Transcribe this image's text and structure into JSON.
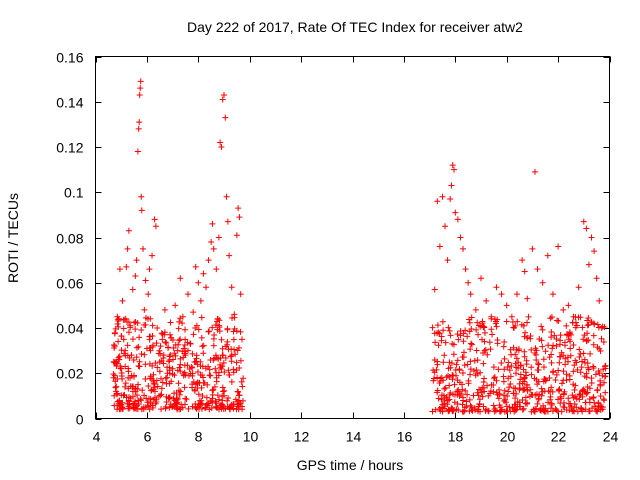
{
  "chart_data": {
    "type": "scatter",
    "title": "Day 222 of 2017, Rate Of TEC Index for receiver atw2",
    "xlabel": "GPS time / hours",
    "ylabel": "ROTI / TECUs",
    "xlim": [
      4,
      24
    ],
    "ylim": [
      0,
      0.16
    ],
    "xticks": [
      4,
      6,
      8,
      10,
      12,
      14,
      16,
      18,
      20,
      22,
      24
    ],
    "yticks": [
      0,
      0.02,
      0.04,
      0.06,
      0.08,
      0.1,
      0.12,
      0.14,
      0.16
    ],
    "xtick_labels": [
      "4",
      "6",
      "8",
      "10",
      "12",
      "14",
      "16",
      "18",
      "20",
      "22",
      "24"
    ],
    "ytick_labels": [
      "0",
      "0.02",
      "0.04",
      "0.06",
      "0.08",
      "0.1",
      "0.12",
      "0.14",
      "0.16"
    ],
    "marker": "+",
    "color": "#ff0000",
    "series": [
      {
        "name": "ROTI",
        "points": [
          [
            4.7,
            0.018
          ],
          [
            4.75,
            0.032
          ],
          [
            4.8,
            0.012
          ],
          [
            4.85,
            0.045
          ],
          [
            4.9,
            0.027
          ],
          [
            4.95,
            0.066
          ],
          [
            5.0,
            0.022
          ],
          [
            5.05,
            0.052
          ],
          [
            5.1,
            0.035
          ],
          [
            5.15,
            0.014
          ],
          [
            5.2,
            0.067
          ],
          [
            5.25,
            0.075
          ],
          [
            5.3,
            0.083
          ],
          [
            5.35,
            0.041
          ],
          [
            5.4,
            0.028
          ],
          [
            5.45,
            0.057
          ],
          [
            5.5,
            0.019
          ],
          [
            5.55,
            0.063
          ],
          [
            5.6,
            0.07
          ],
          [
            5.65,
            0.118
          ],
          [
            5.68,
            0.128
          ],
          [
            5.7,
            0.131
          ],
          [
            5.72,
            0.143
          ],
          [
            5.74,
            0.146
          ],
          [
            5.76,
            0.149
          ],
          [
            5.78,
            0.098
          ],
          [
            5.8,
            0.092
          ],
          [
            5.85,
            0.075
          ],
          [
            5.9,
            0.048
          ],
          [
            5.95,
            0.061
          ],
          [
            6.0,
            0.031
          ],
          [
            6.05,
            0.055
          ],
          [
            6.1,
            0.066
          ],
          [
            6.2,
            0.072
          ],
          [
            6.3,
            0.088
          ],
          [
            6.35,
            0.085
          ],
          [
            6.4,
            0.04
          ],
          [
            6.5,
            0.025
          ],
          [
            6.6,
            0.035
          ],
          [
            6.7,
            0.048
          ],
          [
            6.8,
            0.02
          ],
          [
            6.9,
            0.037
          ],
          [
            7.0,
            0.022
          ],
          [
            7.1,
            0.05
          ],
          [
            7.2,
            0.03
          ],
          [
            7.3,
            0.062
          ],
          [
            7.4,
            0.045
          ],
          [
            7.5,
            0.028
          ],
          [
            7.6,
            0.055
          ],
          [
            7.7,
            0.033
          ],
          [
            7.8,
            0.047
          ],
          [
            7.9,
            0.067
          ],
          [
            8.0,
            0.06
          ],
          [
            8.1,
            0.052
          ],
          [
            8.2,
            0.064
          ],
          [
            8.3,
            0.058
          ],
          [
            8.4,
            0.07
          ],
          [
            8.5,
            0.078
          ],
          [
            8.55,
            0.086
          ],
          [
            8.6,
            0.075
          ],
          [
            8.7,
            0.066
          ],
          [
            8.8,
            0.08
          ],
          [
            8.85,
            0.122
          ],
          [
            8.9,
            0.12
          ],
          [
            8.95,
            0.141
          ],
          [
            9.0,
            0.143
          ],
          [
            9.05,
            0.133
          ],
          [
            9.1,
            0.098
          ],
          [
            9.15,
            0.087
          ],
          [
            9.2,
            0.072
          ],
          [
            9.3,
            0.058
          ],
          [
            9.4,
            0.046
          ],
          [
            9.5,
            0.081
          ],
          [
            9.55,
            0.093
          ],
          [
            9.6,
            0.089
          ],
          [
            9.65,
            0.055
          ],
          [
            9.7,
            0.035
          ],
          [
            17.2,
            0.057
          ],
          [
            17.3,
            0.096
          ],
          [
            17.4,
            0.076
          ],
          [
            17.5,
            0.098
          ],
          [
            17.6,
            0.085
          ],
          [
            17.7,
            0.07
          ],
          [
            17.8,
            0.097
          ],
          [
            17.85,
            0.103
          ],
          [
            17.9,
            0.112
          ],
          [
            17.95,
            0.11
          ],
          [
            18.0,
            0.091
          ],
          [
            18.1,
            0.088
          ],
          [
            18.2,
            0.08
          ],
          [
            18.3,
            0.075
          ],
          [
            18.4,
            0.066
          ],
          [
            18.5,
            0.06
          ],
          [
            18.6,
            0.055
          ],
          [
            18.8,
            0.048
          ],
          [
            19.0,
            0.062
          ],
          [
            19.2,
            0.052
          ],
          [
            19.4,
            0.045
          ],
          [
            19.6,
            0.058
          ],
          [
            19.8,
            0.055
          ],
          [
            20.0,
            0.05
          ],
          [
            20.2,
            0.045
          ],
          [
            20.4,
            0.055
          ],
          [
            20.6,
            0.07
          ],
          [
            20.7,
            0.065
          ],
          [
            20.8,
            0.053
          ],
          [
            21.0,
            0.075
          ],
          [
            21.1,
            0.109
          ],
          [
            21.2,
            0.066
          ],
          [
            21.4,
            0.06
          ],
          [
            21.6,
            0.072
          ],
          [
            21.8,
            0.055
          ],
          [
            22.0,
            0.076
          ],
          [
            22.2,
            0.048
          ],
          [
            22.4,
            0.05
          ],
          [
            22.6,
            0.045
          ],
          [
            22.8,
            0.058
          ],
          [
            23.0,
            0.087
          ],
          [
            23.1,
            0.084
          ],
          [
            23.2,
            0.068
          ],
          [
            23.3,
            0.08
          ],
          [
            23.4,
            0.074
          ],
          [
            23.5,
            0.062
          ],
          [
            23.6,
            0.052
          ],
          [
            23.7,
            0.04
          ]
        ],
        "bands": [
          {
            "x_start": 4.7,
            "x_end": 9.75,
            "y_low": 0.004,
            "y_high": 0.045,
            "count": 520
          },
          {
            "x_start": 17.1,
            "x_end": 23.85,
            "y_low": 0.003,
            "y_high": 0.045,
            "count": 640
          }
        ]
      }
    ]
  }
}
